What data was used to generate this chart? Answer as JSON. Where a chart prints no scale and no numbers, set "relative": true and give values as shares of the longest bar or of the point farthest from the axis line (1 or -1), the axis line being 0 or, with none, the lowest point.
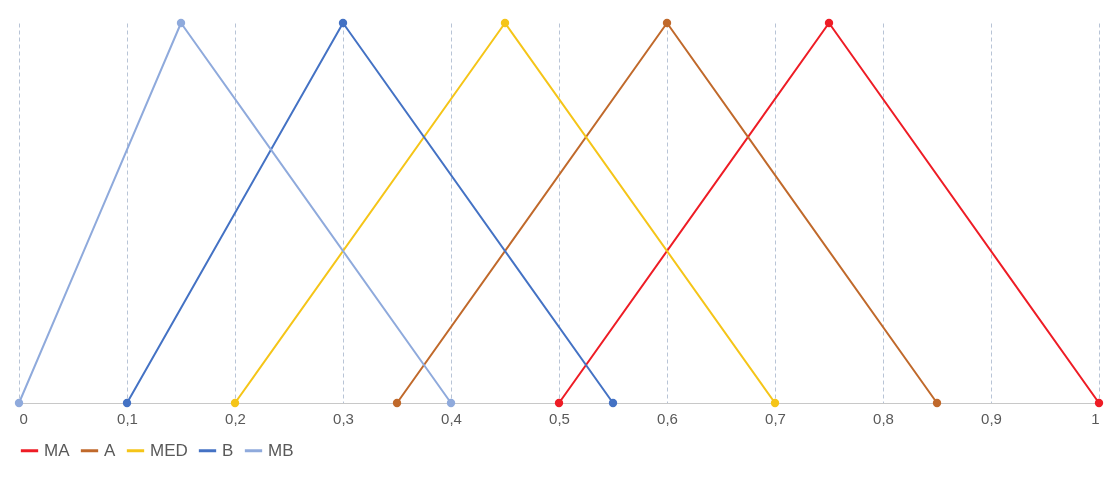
{
  "chart_data": {
    "type": "line",
    "relative": true,
    "xlim": [
      0,
      1
    ],
    "xticks": [
      0,
      {
        "value": 0.1,
        "label": "0,1"
      },
      {
        "value": 0.2,
        "label": "0,2"
      },
      {
        "value": 0.3,
        "label": "0,3"
      },
      {
        "value": 0.4,
        "label": "0,4"
      },
      {
        "value": 0.5,
        "label": "0,5"
      },
      {
        "value": 0.6,
        "label": "0,6"
      },
      {
        "value": 0.7,
        "label": "0,7"
      },
      {
        "value": 0.8,
        "label": "0,8"
      },
      {
        "value": 0.9,
        "label": "0,9"
      },
      1
    ],
    "series": [
      {
        "name": "MA",
        "color": "#ee1c25",
        "x": [
          0.5,
          0.75,
          1
        ],
        "values": [
          0,
          1,
          0
        ]
      },
      {
        "name": "A",
        "color": "#c0692b",
        "x": [
          0.35,
          0.6,
          0.85
        ],
        "values": [
          0,
          1,
          0
        ]
      },
      {
        "name": "MED",
        "color": "#f5c518",
        "x": [
          0.2,
          0.45,
          0.7
        ],
        "values": [
          0,
          1,
          0
        ]
      },
      {
        "name": "B",
        "color": "#4472c4",
        "x": [
          0.1,
          0.3,
          0.55
        ],
        "values": [
          0,
          1,
          0
        ]
      },
      {
        "name": "MB",
        "color": "#8faadc",
        "x": [
          0,
          0.15,
          0.4
        ],
        "values": [
          0,
          1,
          0
        ]
      }
    ],
    "grid": "x",
    "legend": "bottom",
    "marker": "circle",
    "line_style": "solid"
  }
}
